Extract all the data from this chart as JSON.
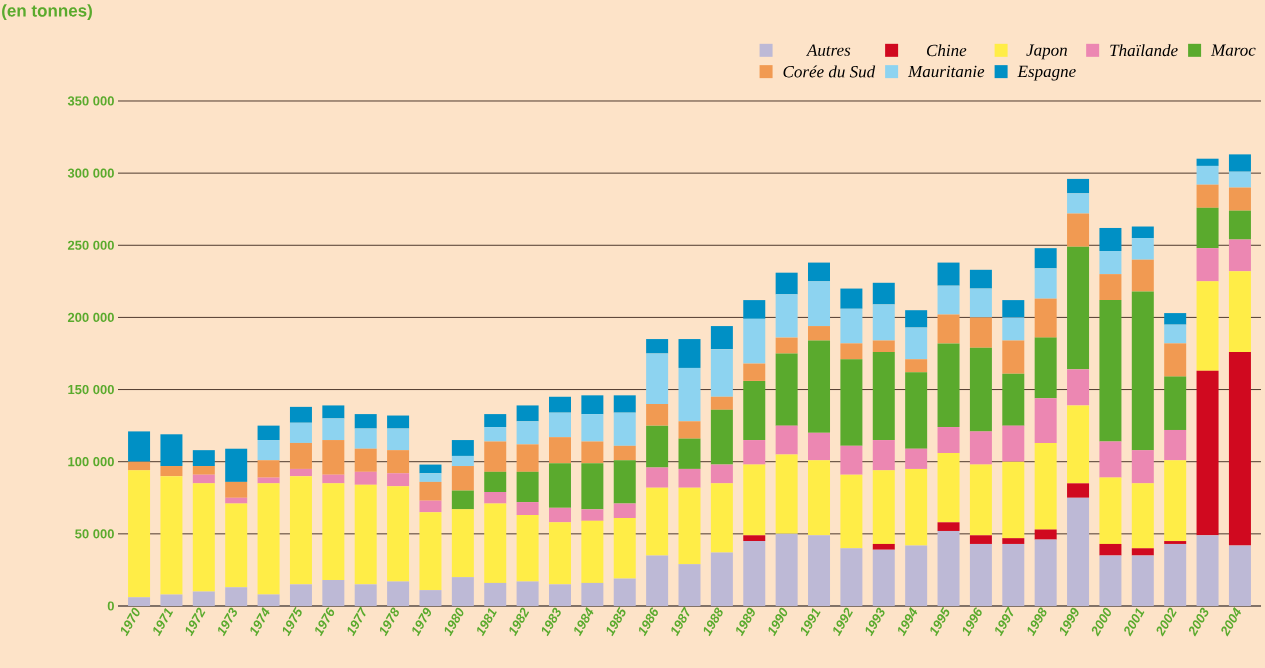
{
  "chart_data": {
    "type": "bar",
    "stacked": true,
    "ylabel": "(en tonnes)",
    "categories": [
      "1970",
      "1971",
      "1972",
      "1973",
      "1974",
      "1975",
      "1976",
      "1977",
      "1978",
      "1979",
      "1980",
      "1981",
      "1982",
      "1983",
      "1984",
      "1985",
      "1986",
      "1987",
      "1988",
      "1989",
      "1990",
      "1991",
      "1992",
      "1993",
      "1994",
      "1995",
      "1996",
      "1997",
      "1998",
      "1999",
      "2000",
      "2001",
      "2002",
      "2003",
      "2004"
    ],
    "series": [
      {
        "name": "Autres",
        "color": "#bdb9d6",
        "values": [
          6000,
          8000,
          10000,
          13000,
          8000,
          15000,
          18000,
          15000,
          17000,
          11000,
          20000,
          16000,
          17000,
          15000,
          16000,
          19000,
          35000,
          29000,
          37000,
          45000,
          50000,
          49000,
          40000,
          39000,
          42000,
          52000,
          43000,
          43000,
          46000,
          75000,
          35000,
          35000,
          43000,
          49000,
          42000
        ]
      },
      {
        "name": "Chine",
        "color": "#d0091f",
        "values": [
          0,
          0,
          0,
          0,
          0,
          0,
          0,
          0,
          0,
          0,
          0,
          0,
          0,
          0,
          0,
          0,
          0,
          0,
          0,
          4000,
          0,
          0,
          0,
          4000,
          0,
          6000,
          6000,
          4000,
          7000,
          10000,
          8000,
          5000,
          2000,
          114000,
          134000
        ]
      },
      {
        "name": "Japon",
        "color": "#ffed47",
        "values": [
          88000,
          82000,
          75000,
          58000,
          77000,
          75000,
          67000,
          69000,
          66000,
          54000,
          47000,
          55000,
          46000,
          43000,
          43000,
          42000,
          47000,
          53000,
          48000,
          49000,
          55000,
          52000,
          51000,
          51000,
          53000,
          48000,
          49000,
          53000,
          60000,
          54000,
          46000,
          45000,
          56000,
          62000,
          56000
        ]
      },
      {
        "name": "Thaïlande",
        "color": "#ec87b2",
        "values": [
          0,
          0,
          6000,
          4000,
          4000,
          5000,
          6000,
          9000,
          9000,
          8000,
          0,
          8000,
          9000,
          10000,
          8000,
          10000,
          14000,
          13000,
          13000,
          17000,
          20000,
          19000,
          20000,
          21000,
          14000,
          18000,
          23000,
          25000,
          31000,
          25000,
          25000,
          23000,
          21000,
          23000,
          22000
        ]
      },
      {
        "name": "Maroc",
        "color": "#5aaa2d",
        "values": [
          0,
          0,
          0,
          0,
          0,
          0,
          0,
          0,
          0,
          0,
          13000,
          14000,
          21000,
          31000,
          32000,
          30000,
          29000,
          21000,
          38000,
          41000,
          50000,
          64000,
          60000,
          61000,
          53000,
          58000,
          58000,
          36000,
          42000,
          85000,
          98000,
          110000,
          37000,
          28000,
          20000
        ]
      },
      {
        "name": "Corée du Sud",
        "color": "#f19a52",
        "values": [
          6000,
          7000,
          6000,
          11000,
          12000,
          18000,
          24000,
          16000,
          16000,
          13000,
          17000,
          21000,
          19000,
          18000,
          15000,
          10000,
          15000,
          12000,
          9000,
          12000,
          11000,
          10000,
          11000,
          8000,
          9000,
          20000,
          21000,
          23000,
          27000,
          23000,
          18000,
          22000,
          23000,
          16000,
          16000
        ]
      },
      {
        "name": "Mauritanie",
        "color": "#8dd3f0",
        "values": [
          0,
          0,
          0,
          0,
          14000,
          14000,
          15000,
          14000,
          15000,
          6000,
          7000,
          10000,
          16000,
          17000,
          19000,
          23000,
          35000,
          37000,
          33000,
          31000,
          30000,
          31000,
          24000,
          25000,
          22000,
          20000,
          20000,
          16000,
          21000,
          14000,
          16000,
          15000,
          13000,
          13000,
          11000
        ]
      },
      {
        "name": "Espagne",
        "color": "#0090c5",
        "values": [
          21000,
          22000,
          11000,
          23000,
          10000,
          11000,
          9000,
          10000,
          9000,
          6000,
          11000,
          9000,
          11000,
          11000,
          13000,
          12000,
          10000,
          20000,
          16000,
          13000,
          15000,
          13000,
          14000,
          15000,
          12000,
          16000,
          13000,
          12000,
          14000,
          10000,
          16000,
          8000,
          8000,
          5000,
          12000
        ]
      }
    ],
    "ylim": [
      0,
      350000
    ],
    "yticks": [
      {
        "value": 0,
        "label": "0"
      },
      {
        "value": 50000,
        "label": "50 000"
      },
      {
        "value": 100000,
        "label": "100 000"
      },
      {
        "value": 150000,
        "label": "150 000"
      },
      {
        "value": 200000,
        "label": "200 000"
      },
      {
        "value": 250000,
        "label": "250 000"
      },
      {
        "value": 300000,
        "label": "300 000"
      },
      {
        "value": 350000,
        "label": "350 000"
      }
    ],
    "grid": "y",
    "legend": "top right"
  }
}
